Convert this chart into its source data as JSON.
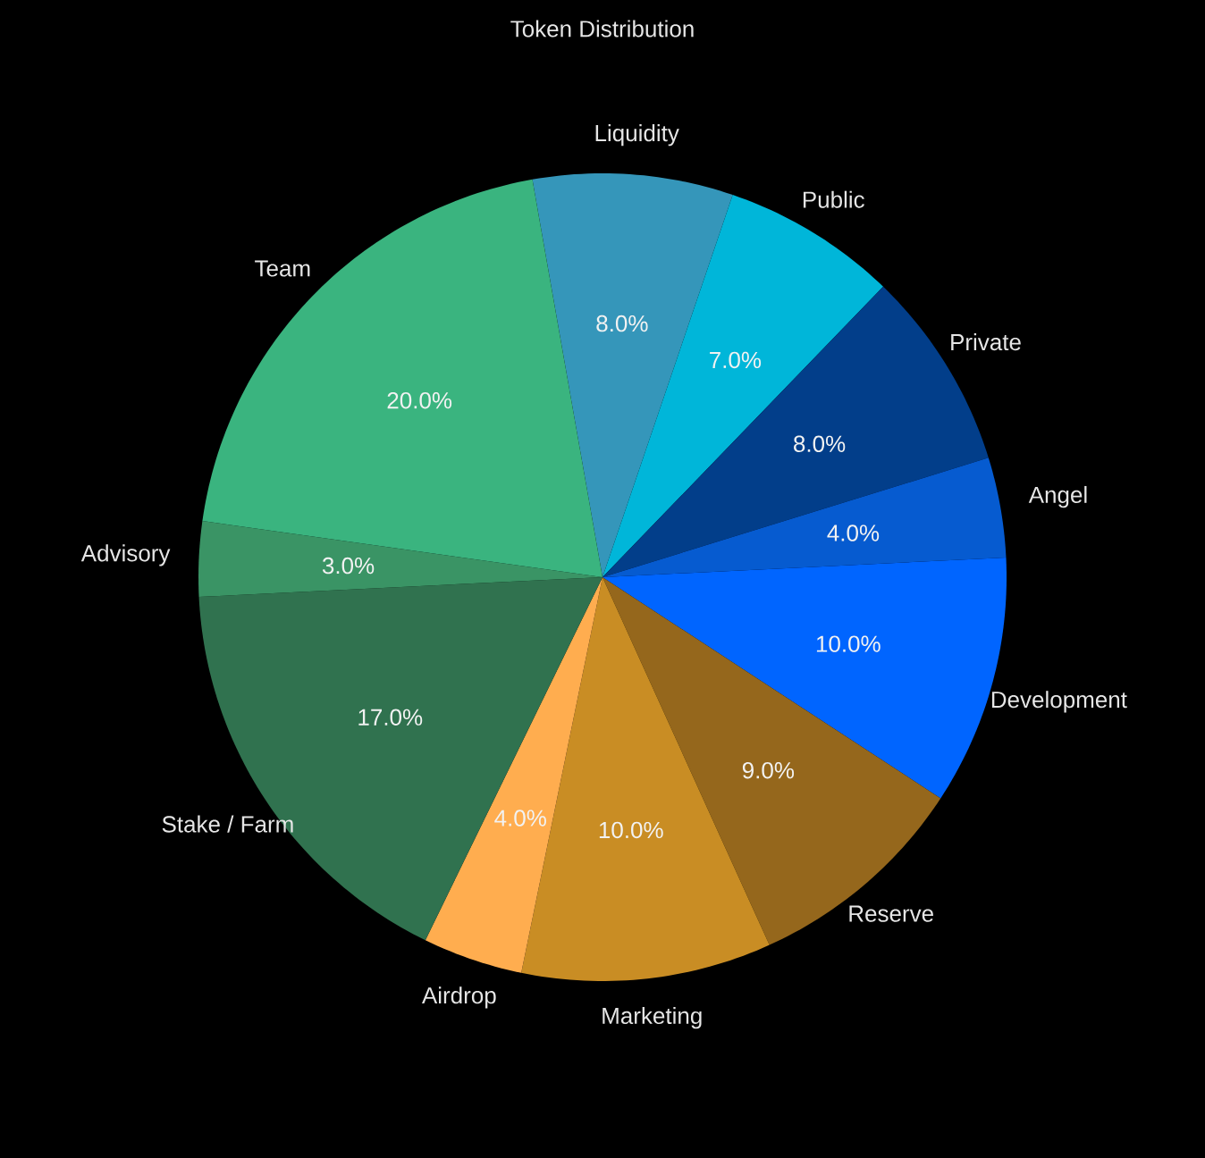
{
  "chart_data": {
    "type": "pie",
    "title": "Token Distribution",
    "categories": [
      "Liquidity",
      "Public",
      "Private",
      "Angel",
      "Development",
      "Reserve",
      "Marketing",
      "Airdrop",
      "Stake / Farm",
      "Advisory",
      "Team"
    ],
    "values": [
      8,
      7,
      8,
      4,
      10,
      9,
      10,
      4,
      17,
      3,
      20
    ],
    "colors": [
      "#3596ba",
      "#00b6d9",
      "#023e8a",
      "#065bd0",
      "#0065ff",
      "#95671c",
      "#c98d24",
      "#ffad4f",
      "#30724f",
      "#3a9465",
      "#3ab47f"
    ],
    "value_labels": [
      "8.0%",
      "7.0%",
      "8.0%",
      "4.0%",
      "10.0%",
      "9.0%",
      "10.0%",
      "4.0%",
      "17.0%",
      "3.0%",
      "20.0%"
    ]
  }
}
